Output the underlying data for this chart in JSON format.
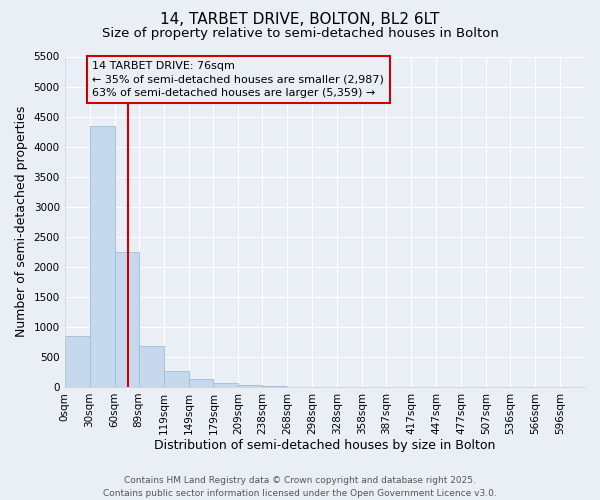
{
  "title": "14, TARBET DRIVE, BOLTON, BL2 6LT",
  "subtitle": "Size of property relative to semi-detached houses in Bolton",
  "xlabel": "Distribution of semi-detached houses by size in Bolton",
  "ylabel": "Number of semi-detached properties",
  "bar_color": "#c5d8ec",
  "bar_edge_color": "#a0bcd8",
  "background_color": "#eaeff5",
  "grid_color": "#ffffff",
  "bins": [
    "0sqm",
    "30sqm",
    "60sqm",
    "89sqm",
    "119sqm",
    "149sqm",
    "179sqm",
    "209sqm",
    "238sqm",
    "268sqm",
    "298sqm",
    "328sqm",
    "358sqm",
    "387sqm",
    "417sqm",
    "447sqm",
    "477sqm",
    "507sqm",
    "536sqm",
    "566sqm",
    "596sqm"
  ],
  "bin_lefts": [
    0,
    30,
    60,
    89,
    119,
    149,
    179,
    209,
    238,
    268,
    298,
    328,
    358,
    387,
    417,
    447,
    477,
    507,
    536,
    566
  ],
  "bin_widths": [
    30,
    30,
    29,
    30,
    30,
    30,
    30,
    29,
    30,
    30,
    30,
    30,
    29,
    30,
    30,
    30,
    30,
    29,
    30,
    30
  ],
  "values": [
    850,
    4350,
    2250,
    680,
    260,
    130,
    60,
    30,
    10,
    0,
    0,
    0,
    0,
    0,
    0,
    0,
    0,
    0,
    0,
    0
  ],
  "ylim": [
    0,
    5500
  ],
  "yticks": [
    0,
    500,
    1000,
    1500,
    2000,
    2500,
    3000,
    3500,
    4000,
    4500,
    5000,
    5500
  ],
  "property_size": 76,
  "vline_color": "#cc0000",
  "annotation_box_color": "#cc0000",
  "annotation_title": "14 TARBET DRIVE: 76sqm",
  "annotation_line1": "← 35% of semi-detached houses are smaller (2,987)",
  "annotation_line2": "63% of semi-detached houses are larger (5,359) →",
  "footer_line1": "Contains HM Land Registry data © Crown copyright and database right 2025.",
  "footer_line2": "Contains public sector information licensed under the Open Government Licence v3.0.",
  "title_fontsize": 11,
  "subtitle_fontsize": 9.5,
  "axis_label_fontsize": 9,
  "tick_fontsize": 7.5,
  "annotation_fontsize": 8,
  "footer_fontsize": 6.5
}
